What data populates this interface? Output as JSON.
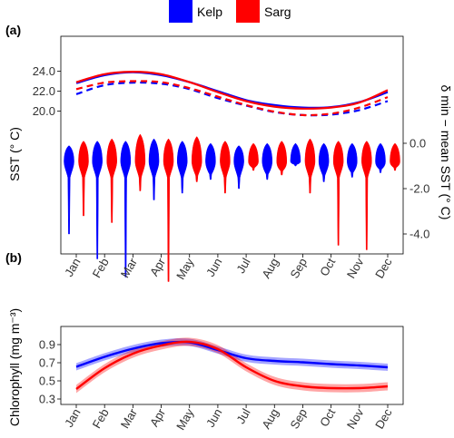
{
  "legend": [
    {
      "name": "Kelp",
      "color": "#0000FF"
    },
    {
      "name": "Sarg",
      "color": "#FF0000"
    }
  ],
  "panel_a": {
    "label": "(a)"
  },
  "panel_b": {
    "label": "(b)"
  },
  "chart_data": [
    {
      "type": "line",
      "panel": "(a)",
      "ylabel": "SST (° C)",
      "ylabel_right": "δ min − mean SST (° C)",
      "months": [
        "Jan",
        "Feb",
        "Mar",
        "Apr",
        "May",
        "Jun",
        "Jul",
        "Aug",
        "Sep",
        "Oct",
        "Nov",
        "Dec"
      ],
      "yticks_left": [
        "24.0",
        "22.0",
        "20.0"
      ],
      "yticks_right": [
        "0.0",
        "-2.0",
        "-4.0"
      ],
      "mean_sst": [
        {
          "name": "Kelp",
          "values": [
            22.8,
            23.6,
            23.9,
            23.6,
            22.9,
            22.0,
            21.1,
            20.6,
            20.35,
            20.4,
            20.9,
            21.9
          ]
        },
        {
          "name": "Sarg",
          "values": [
            22.9,
            23.7,
            23.95,
            23.7,
            22.9,
            21.9,
            21.0,
            20.45,
            20.25,
            20.35,
            20.85,
            22.1
          ]
        }
      ],
      "min_sst": [
        {
          "name": "Kelp",
          "values": [
            21.7,
            22.6,
            22.85,
            22.75,
            22.2,
            21.3,
            20.55,
            19.9,
            19.6,
            19.65,
            20.1,
            21.0
          ]
        },
        {
          "name": "Sarg",
          "values": [
            22.2,
            22.85,
            23.0,
            22.9,
            22.3,
            21.45,
            20.6,
            19.95,
            19.6,
            19.75,
            20.35,
            21.4
          ]
        }
      ],
      "violin_min_delta": [
        {
          "name": "Kelp",
          "values": [
            -4.0,
            -5.1,
            -5.9,
            -2.5,
            -2.2,
            -1.6,
            -2.0,
            -1.6,
            -1.0,
            -1.7,
            -1.5,
            -1.3
          ]
        },
        {
          "name": "Sarg",
          "values": [
            -3.2,
            -3.5,
            -2.1,
            -6.1,
            -1.7,
            -2.2,
            -1.2,
            -1.4,
            -2.2,
            -4.5,
            -4.7,
            -1.2
          ]
        }
      ],
      "violin_max_delta": [
        {
          "name": "Kelp",
          "values": [
            -0.1,
            0.1,
            0.1,
            0.2,
            0.1,
            0.0,
            -0.1,
            0.0,
            0.0,
            0.0,
            0.0,
            0.0
          ]
        },
        {
          "name": "Sarg",
          "values": [
            0.1,
            0.2,
            0.4,
            0.2,
            0.3,
            0.1,
            0.0,
            0.1,
            0.2,
            0.1,
            0.1,
            0.0
          ]
        }
      ]
    },
    {
      "type": "line",
      "panel": "(b)",
      "ylabel": "Chlorophyll (mg m⁻³)",
      "months": [
        "Jan",
        "Feb",
        "Mar",
        "Apr",
        "May",
        "Jun",
        "Jul",
        "Aug",
        "Sep",
        "Oct",
        "Nov",
        "Dec"
      ],
      "yticks": [
        "0.9",
        "0.7",
        "0.5",
        "0.3"
      ],
      "ylim": [
        0.3,
        1.02
      ],
      "series": [
        {
          "name": "Kelp",
          "values": [
            0.655,
            0.765,
            0.855,
            0.915,
            0.925,
            0.84,
            0.75,
            0.72,
            0.705,
            0.685,
            0.67,
            0.65
          ]
        },
        {
          "name": "Sarg",
          "values": [
            0.41,
            0.64,
            0.8,
            0.89,
            0.93,
            0.85,
            0.65,
            0.5,
            0.44,
            0.42,
            0.42,
            0.44
          ]
        }
      ]
    }
  ]
}
